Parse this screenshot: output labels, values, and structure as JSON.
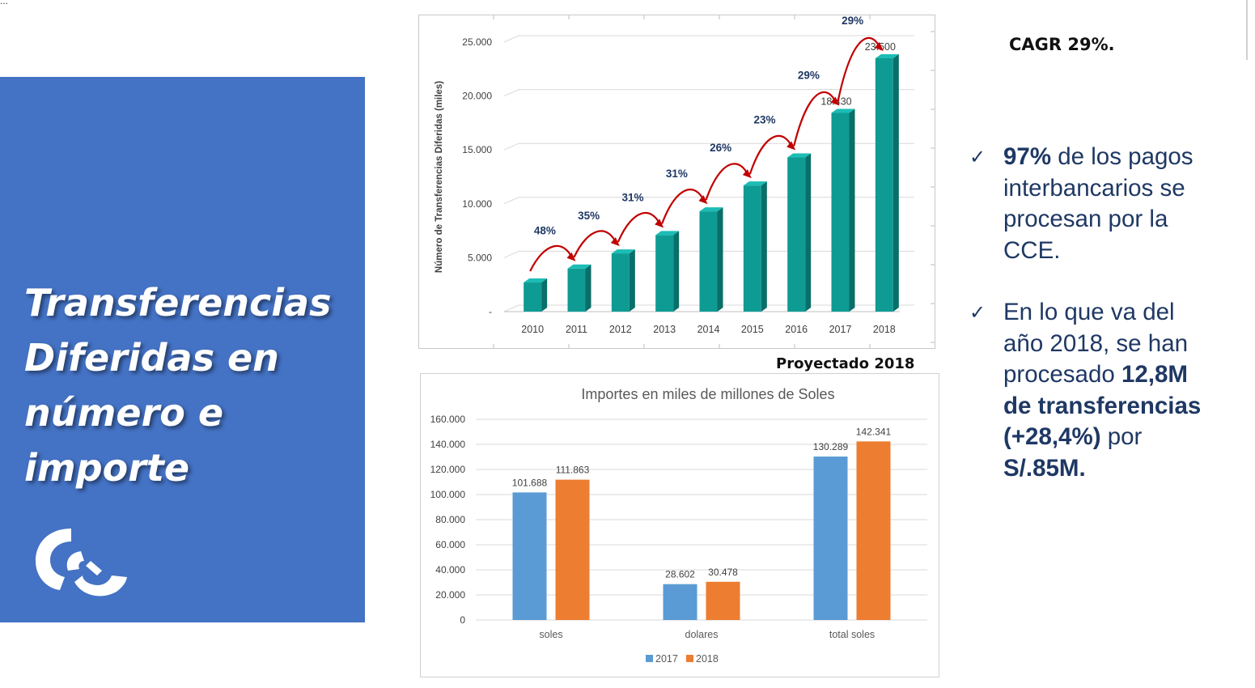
{
  "slide": {
    "corner_marker": "...",
    "title_lines": [
      "Transferencias",
      "Diferidas en",
      "número e",
      "importe"
    ],
    "logo_icon": "cce-logo-icon",
    "projected_label": "Proyectado 2018",
    "cagr_label": "CAGR 29%.",
    "bullets": [
      {
        "p1_bold": "97%",
        "p1": " de los pagos interbancarios se procesan por la CCE."
      },
      {
        "p1": "En lo que va del año 2018, se han procesado ",
        "p2_bold": "12,8M de transferencias (+28,4%)",
        "p3": " por ",
        "p4_bold": "S/.85M."
      }
    ],
    "check_glyph": "✓",
    "colors": {
      "panel": "#4472c4",
      "bar3d_front": "#0e9b94",
      "bar3d_side": "#0a6e69",
      "bar3d_top": "#1bbdb5",
      "arrow": "#c00000",
      "growth_text": "#1f3864",
      "series_2017": "#5b9bd5",
      "series_2018": "#ed7d31",
      "bullet_text": "#1f3864"
    }
  },
  "chart_data": [
    {
      "type": "bar",
      "title": "",
      "ylabel": "Número de Transferencias Diferidas (miles)",
      "xlabel": "",
      "categories": [
        "2010",
        "2011",
        "2012",
        "2013",
        "2014",
        "2015",
        "2016",
        "2017",
        "2018"
      ],
      "values": [
        2700,
        4000,
        5400,
        7100,
        9300,
        11700,
        14300,
        18430,
        23500
      ],
      "value_labels": [
        "",
        "",
        "",
        "",
        "",
        "",
        "",
        "18.430",
        "23.500"
      ],
      "growth_labels": [
        "48%",
        "35%",
        "31%",
        "31%",
        "26%",
        "23%",
        "29%",
        "29%"
      ],
      "ylim": [
        0,
        25000
      ],
      "yticks": [
        0,
        5000,
        10000,
        15000,
        20000,
        25000
      ],
      "ytick_labels": [
        "-",
        "5.000",
        "10.000",
        "15.000",
        "20.000",
        "25.000"
      ],
      "grid": true,
      "style": "3d"
    },
    {
      "type": "bar",
      "title": "Importes en miles de millones de Soles",
      "categories": [
        "soles",
        "dolares",
        "total soles"
      ],
      "series": [
        {
          "name": "2017",
          "values": [
            101688,
            28602,
            130289
          ],
          "labels": [
            "101.688",
            "28.602",
            "130.289"
          ]
        },
        {
          "name": "2018",
          "values": [
            111863,
            30478,
            142341
          ],
          "labels": [
            "111.863",
            "30.478",
            "142.341"
          ]
        }
      ],
      "ylim": [
        0,
        160000
      ],
      "yticks": [
        0,
        20000,
        40000,
        60000,
        80000,
        100000,
        120000,
        140000,
        160000
      ],
      "ytick_labels": [
        "0",
        "20.000",
        "40.000",
        "60.000",
        "80.000",
        "100.000",
        "120.000",
        "140.000",
        "160.000"
      ],
      "grid": true,
      "legend": "bottom"
    }
  ]
}
